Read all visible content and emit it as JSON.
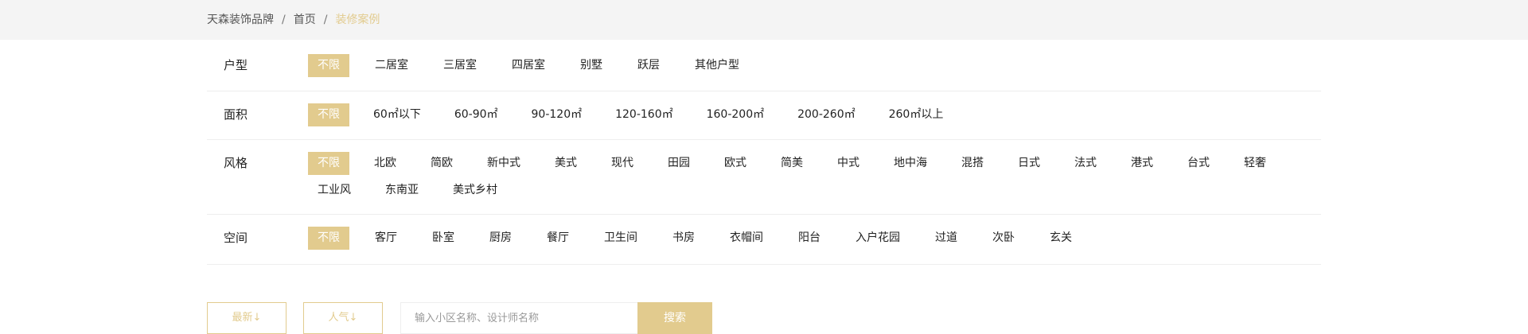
{
  "breadcrumb": {
    "items": [
      "天森装饰品牌",
      "首页"
    ],
    "separator": "/",
    "current": "装修案例"
  },
  "filters": [
    {
      "label": "户型",
      "options": [
        "不限",
        "二居室",
        "三居室",
        "四居室",
        "别墅",
        "跃层",
        "其他户型"
      ],
      "selected": 0
    },
    {
      "label": "面积",
      "options": [
        "不限",
        "60㎡以下",
        "60-90㎡",
        "90-120㎡",
        "120-160㎡",
        "160-200㎡",
        "200-260㎡",
        "260㎡以上"
      ],
      "selected": 0
    },
    {
      "label": "风格",
      "options": [
        "不限",
        "北欧",
        "简欧",
        "新中式",
        "美式",
        "现代",
        "田园",
        "欧式",
        "简美",
        "中式",
        "地中海",
        "混搭",
        "日式",
        "法式",
        "港式",
        "台式",
        "轻奢",
        "工业风",
        "东南亚",
        "美式乡村"
      ],
      "selected": 0
    },
    {
      "label": "空间",
      "options": [
        "不限",
        "客厅",
        "卧室",
        "厨房",
        "餐厅",
        "卫生间",
        "书房",
        "衣帽间",
        "阳台",
        "入户花园",
        "过道",
        "次卧",
        "玄关"
      ],
      "selected": 0
    }
  ],
  "toolbar": {
    "sort_latest": "最新↓",
    "sort_popular": "人气↓",
    "search_placeholder": "输入小区名称、设计师名称",
    "search_value": "",
    "search_button": "搜索"
  },
  "colors": {
    "accent": "#e2cb8e",
    "top_bar_bg": "#f4f4f4",
    "divider": "#eeeeee"
  }
}
